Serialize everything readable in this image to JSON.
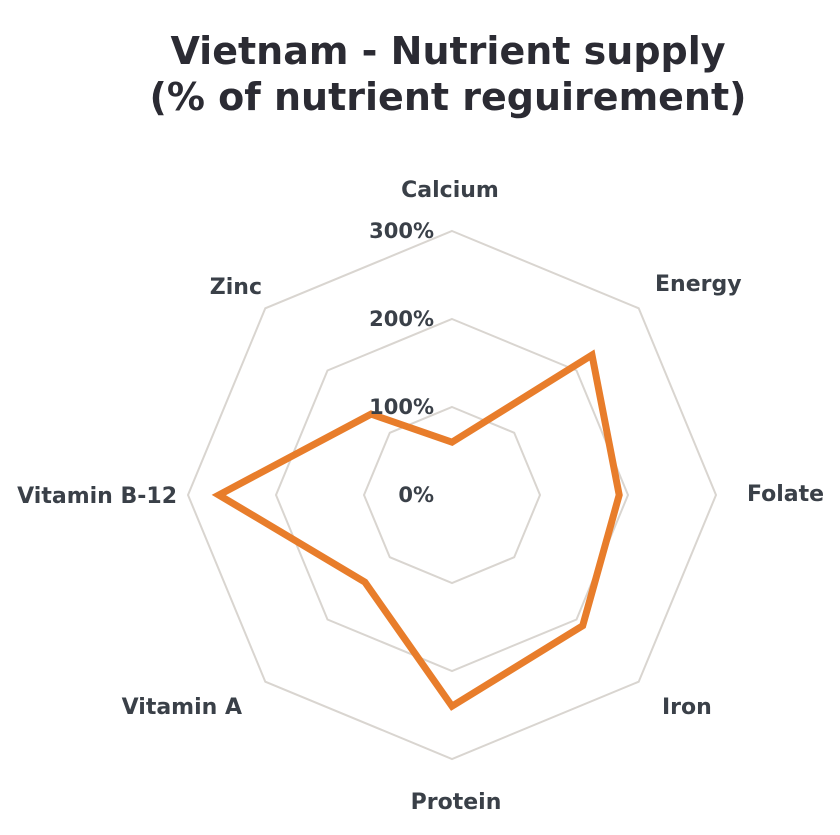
{
  "title": {
    "line1": "Vietnam - Nutrient supply",
    "line2": "(% of nutrient reguirement)"
  },
  "chart_data": {
    "type": "radar",
    "title": "Vietnam - Nutrient supply (% of nutrient reguirement)",
    "categories": [
      "Calcium",
      "Energy",
      "Folate",
      "Iron",
      "Protein",
      "Vitamin A",
      "Vitamin B-12",
      "Zinc"
    ],
    "series": [
      {
        "name": "Vietnam nutrient supply",
        "values": [
          60,
          225,
          190,
          210,
          240,
          140,
          265,
          130
        ]
      }
    ],
    "rings": [
      0,
      100,
      200,
      300
    ],
    "ring_labels": [
      "0%",
      "100%",
      "200%",
      "300%"
    ],
    "rlim": [
      0,
      300
    ],
    "unit": "%",
    "grid": true,
    "legend_position": "none",
    "colors": {
      "series": "#E87D2B",
      "grid": "#D9D5D0",
      "axis_label": "#3A4048",
      "ring_label": "#3A4048",
      "title": "#2B2B33"
    }
  }
}
